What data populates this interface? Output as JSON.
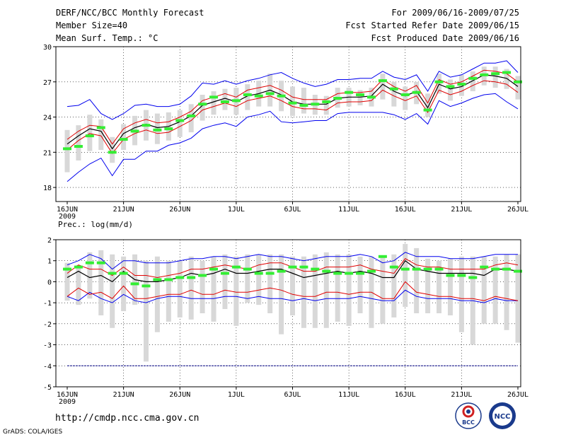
{
  "header": {
    "title": "DERF/NCC/BCC Monthly Forecast",
    "member_size": "Member Size=40",
    "variable": "Mean Surf. Temp.: °C",
    "period": "For 2009/06/16-2009/07/25",
    "started": "Fcst Started Refer Date 2009/06/15",
    "produced": "Fcst Produced Date 2009/06/16"
  },
  "footer": {
    "url": "http://cmdp.ncc.cma.gov.cn",
    "grads": "GrADS: COLA/IGES",
    "logo1_text": "BCC",
    "logo2_text": "NCC"
  },
  "colors": {
    "ens_mean": "#000000",
    "spread": "#e00000",
    "extreme": "#0000ee",
    "box": "#d8d8d8",
    "mark": "#33ee33",
    "ref": "#000080"
  },
  "chart_data": [
    {
      "type": "line",
      "title": "Mean Surf. Temp.: °C",
      "x_tick_labels": [
        "16JUN",
        "21JUN",
        "26JUN",
        "1JUL",
        "6JUL",
        "11JUL",
        "16JUL",
        "21JUL",
        "26JUL"
      ],
      "x_year_label": "2009",
      "ylim": [
        16.8,
        30
      ],
      "y_ticks": [
        18,
        21,
        24,
        27,
        30
      ],
      "series": {
        "mean": [
          21.7,
          22.4,
          23.0,
          22.8,
          21.3,
          22.6,
          23.1,
          23.4,
          23.1,
          23.2,
          23.6,
          24.1,
          25.0,
          25.3,
          25.6,
          25.3,
          25.8,
          26.0,
          26.3,
          25.9,
          25.3,
          25.1,
          25.1,
          25.1,
          25.6,
          25.7,
          25.7,
          25.8,
          26.8,
          26.2,
          25.8,
          26.2,
          24.8,
          26.8,
          26.4,
          26.6,
          27.1,
          27.6,
          27.5,
          27.3,
          26.6
        ],
        "upper_spread": [
          22.1,
          22.8,
          23.3,
          23.2,
          21.7,
          23.0,
          23.5,
          23.8,
          23.5,
          23.6,
          24.0,
          24.5,
          25.4,
          25.7,
          26.0,
          25.7,
          26.3,
          26.5,
          26.7,
          26.3,
          25.7,
          25.5,
          25.5,
          25.5,
          26.0,
          26.1,
          26.1,
          26.2,
          27.2,
          26.6,
          26.2,
          26.7,
          25.2,
          27.2,
          26.8,
          27.0,
          27.5,
          28.0,
          27.9,
          27.7,
          27.0
        ],
        "lower_spread": [
          21.2,
          22.0,
          22.6,
          22.4,
          20.9,
          22.1,
          22.6,
          22.9,
          22.6,
          22.7,
          23.2,
          23.7,
          24.6,
          24.9,
          25.2,
          24.9,
          25.4,
          25.6,
          25.8,
          25.4,
          24.9,
          24.7,
          24.7,
          24.6,
          25.2,
          25.3,
          25.3,
          25.4,
          26.3,
          25.8,
          25.4,
          25.8,
          24.4,
          26.3,
          25.9,
          26.2,
          26.7,
          27.1,
          27.0,
          26.8,
          26.1
        ],
        "max": [
          24.9,
          25.0,
          25.5,
          24.3,
          23.8,
          24.3,
          25.0,
          25.1,
          24.9,
          24.9,
          25.1,
          25.8,
          26.9,
          26.8,
          27.1,
          26.8,
          27.1,
          27.3,
          27.6,
          27.8,
          27.3,
          26.9,
          26.6,
          26.8,
          27.2,
          27.2,
          27.3,
          27.3,
          27.9,
          27.4,
          27.2,
          27.6,
          26.2,
          27.9,
          27.4,
          27.6,
          28.1,
          28.6,
          28.6,
          28.8,
          27.8
        ],
        "min": [
          18.5,
          19.3,
          20.0,
          20.5,
          19.0,
          20.4,
          20.4,
          21.1,
          21.1,
          21.6,
          21.8,
          22.2,
          23.0,
          23.3,
          23.5,
          23.2,
          24.0,
          24.2,
          24.5,
          23.6,
          23.5,
          23.6,
          23.7,
          23.7,
          24.3,
          24.4,
          24.4,
          24.4,
          24.4,
          24.2,
          23.8,
          24.3,
          23.4,
          25.4,
          24.9,
          25.2,
          25.6,
          25.9,
          26.0,
          25.3,
          24.7
        ],
        "box_top": [
          22.9,
          23.3,
          24.2,
          23.8,
          22.3,
          23.4,
          24.1,
          24.6,
          24.3,
          24.4,
          24.6,
          25.1,
          25.9,
          26.2,
          26.4,
          26.5,
          26.8,
          27.1,
          27.7,
          27.1,
          26.6,
          26.5,
          25.9,
          25.8,
          26.5,
          26.5,
          26.3,
          26.5,
          27.7,
          27.0,
          26.6,
          27.0,
          26.0,
          27.7,
          27.2,
          27.6,
          27.9,
          28.3,
          28.3,
          28.1,
          27.5
        ],
        "box_bottom": [
          19.3,
          20.3,
          21.1,
          21.2,
          20.1,
          21.2,
          21.6,
          22.0,
          21.7,
          22.0,
          22.3,
          22.7,
          23.7,
          24.2,
          24.6,
          24.2,
          24.6,
          24.9,
          24.9,
          24.5,
          24.1,
          24.3,
          24.2,
          24.2,
          24.8,
          24.9,
          25.0,
          24.9,
          25.5,
          24.9,
          24.6,
          25.1,
          24.0,
          26.0,
          25.4,
          25.8,
          26.2,
          26.7,
          26.5,
          26.4,
          25.5
        ],
        "marks": [
          21.3,
          21.5,
          22.4,
          23.1,
          21.0,
          22.1,
          22.8,
          23.3,
          22.9,
          23.0,
          23.7,
          24.1,
          25.1,
          25.7,
          25.3,
          25.4,
          25.9,
          25.8,
          26.0,
          25.8,
          25.2,
          25.0,
          25.1,
          25.3,
          25.6,
          26.1,
          25.9,
          25.7,
          27.1,
          26.4,
          25.9,
          26.1,
          24.6,
          27.0,
          26.6,
          26.8,
          27.3,
          27.6,
          27.7,
          27.8,
          27.0
        ]
      }
    },
    {
      "type": "line",
      "title": "Prec.: log(mm/d)",
      "x_tick_labels": [
        "16JUN",
        "21JUN",
        "26JUN",
        "1JUL",
        "6JUL",
        "11JUL",
        "16JUL",
        "21JUL",
        "26JUL"
      ],
      "x_year_label": "2009",
      "ylim": [
        -5,
        2
      ],
      "y_ticks": [
        -5,
        -4,
        -3,
        -2,
        -1,
        0,
        1,
        2
      ],
      "reference_line": -4,
      "series": {
        "mean": [
          0.2,
          0.5,
          0.2,
          0.3,
          0.0,
          0.5,
          0.1,
          0.0,
          0.0,
          0.1,
          0.2,
          0.4,
          0.3,
          0.4,
          0.6,
          0.4,
          0.4,
          0.5,
          0.6,
          0.6,
          0.4,
          0.2,
          0.3,
          0.4,
          0.5,
          0.4,
          0.5,
          0.4,
          0.2,
          0.2,
          1.0,
          0.6,
          0.5,
          0.4,
          0.4,
          0.4,
          0.4,
          0.3,
          0.6,
          0.6,
          0.5
        ],
        "upper_spread": [
          0.4,
          0.8,
          0.6,
          0.6,
          0.3,
          0.7,
          0.3,
          0.3,
          0.2,
          0.3,
          0.4,
          0.6,
          0.6,
          0.7,
          0.8,
          0.7,
          0.6,
          0.8,
          0.9,
          0.9,
          0.7,
          0.5,
          0.5,
          0.7,
          0.7,
          0.7,
          0.8,
          0.6,
          0.5,
          0.4,
          1.1,
          0.8,
          0.7,
          0.7,
          0.6,
          0.6,
          0.6,
          0.6,
          0.8,
          0.9,
          0.8
        ],
        "lower_spread": [
          -0.7,
          -0.3,
          -0.6,
          -0.5,
          -0.8,
          -0.2,
          -0.8,
          -0.8,
          -0.7,
          -0.6,
          -0.6,
          -0.4,
          -0.6,
          -0.6,
          -0.4,
          -0.5,
          -0.5,
          -0.4,
          -0.3,
          -0.4,
          -0.6,
          -0.7,
          -0.7,
          -0.5,
          -0.5,
          -0.6,
          -0.5,
          -0.5,
          -0.8,
          -0.8,
          0.0,
          -0.5,
          -0.6,
          -0.7,
          -0.7,
          -0.8,
          -0.8,
          -0.9,
          -0.7,
          -0.8,
          -0.9
        ],
        "max": [
          0.8,
          1.0,
          1.3,
          1.1,
          0.6,
          1.0,
          1.0,
          0.9,
          0.9,
          0.9,
          1.0,
          1.1,
          1.1,
          1.2,
          1.2,
          1.1,
          1.2,
          1.3,
          1.2,
          1.2,
          1.1,
          1.0,
          1.1,
          1.2,
          1.2,
          1.2,
          1.3,
          1.2,
          0.9,
          1.0,
          1.4,
          1.2,
          1.2,
          1.2,
          1.1,
          1.1,
          1.1,
          1.2,
          1.3,
          1.3,
          1.3
        ],
        "min": [
          -0.7,
          -0.9,
          -0.5,
          -0.8,
          -1.0,
          -0.6,
          -0.9,
          -1.0,
          -0.8,
          -0.7,
          -0.7,
          -0.8,
          -0.8,
          -0.8,
          -0.7,
          -0.7,
          -0.8,
          -0.7,
          -0.8,
          -0.8,
          -0.9,
          -0.8,
          -0.9,
          -0.8,
          -0.8,
          -0.8,
          -0.7,
          -0.8,
          -0.9,
          -0.9,
          -0.4,
          -0.7,
          -0.8,
          -0.8,
          -0.8,
          -0.9,
          -0.9,
          -1.0,
          -0.8,
          -0.9,
          -0.9
        ],
        "box_top": [
          0.9,
          0.8,
          1.4,
          1.5,
          1.3,
          1.2,
          1.3,
          1.0,
          1.2,
          1.0,
          1.0,
          1.2,
          1.0,
          1.2,
          1.3,
          1.2,
          1.3,
          1.3,
          1.3,
          1.3,
          1.2,
          1.2,
          1.3,
          1.4,
          1.3,
          1.3,
          1.2,
          1.2,
          1.2,
          1.3,
          1.8,
          1.6,
          1.1,
          1.0,
          1.1,
          1.2,
          1.2,
          1.2,
          1.2,
          1.3,
          1.3
        ],
        "box_bottom": [
          -0.9,
          -1.1,
          -0.8,
          -1.6,
          -2.2,
          -1.4,
          -1.1,
          -3.8,
          -2.4,
          -1.9,
          -1.7,
          -1.8,
          -1.5,
          -1.9,
          -1.3,
          -2.1,
          -1.0,
          -1.1,
          -1.5,
          -2.5,
          -1.6,
          -2.2,
          -2.2,
          -2.2,
          -1.9,
          -2.1,
          -1.5,
          -2.2,
          -2.0,
          -1.7,
          -1.2,
          -1.5,
          -1.5,
          -1.5,
          -1.6,
          -2.4,
          -3.0,
          -2.0,
          -2.0,
          -2.3,
          -2.9
        ],
        "marks": [
          0.6,
          0.7,
          0.9,
          0.9,
          0.4,
          0.4,
          -0.1,
          -0.2,
          0.1,
          0.1,
          0.2,
          0.2,
          0.3,
          0.6,
          0.4,
          0.7,
          0.6,
          0.4,
          0.4,
          0.5,
          0.7,
          0.7,
          0.6,
          0.5,
          0.4,
          0.4,
          0.4,
          0.5,
          1.2,
          0.7,
          0.6,
          0.6,
          0.6,
          0.6,
          0.3,
          0.3,
          0.2,
          0.7,
          0.6,
          0.6,
          0.5
        ]
      }
    }
  ]
}
